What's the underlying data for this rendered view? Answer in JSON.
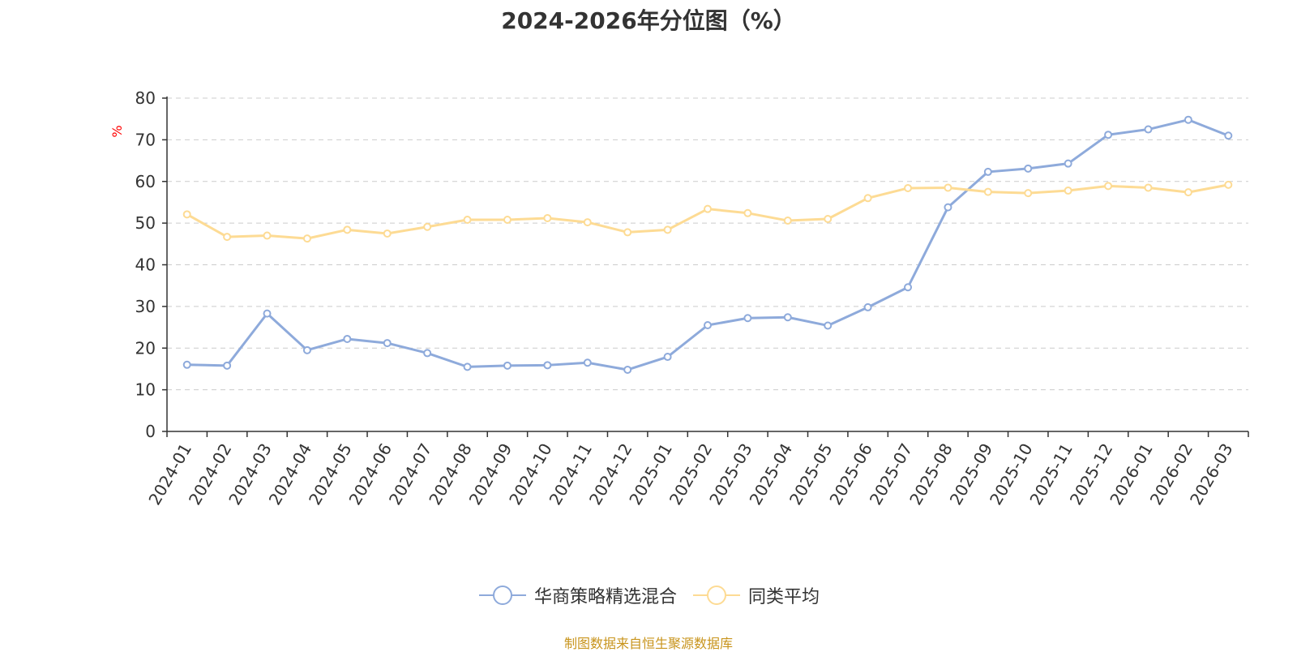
{
  "chart_data": {
    "type": "line",
    "title": "2024-2026年分位图（%）",
    "ylabel": "%",
    "ylim": [
      0,
      80
    ],
    "yticks": [
      0,
      10,
      20,
      30,
      40,
      50,
      60,
      70,
      80
    ],
    "grid": true,
    "legend_position": "bottom",
    "categories": [
      "2024-01",
      "2024-02",
      "2024-03",
      "2024-04",
      "2024-05",
      "2024-06",
      "2024-07",
      "2024-08",
      "2024-09",
      "2024-10",
      "2024-11",
      "2024-12",
      "2025-01",
      "2025-02",
      "2025-03",
      "2025-04",
      "2025-05",
      "2025-06",
      "2025-07",
      "2025-08",
      "2025-09",
      "2025-10",
      "2025-11",
      "2025-12",
      "2026-01",
      "2026-02",
      "2026-03"
    ],
    "series": [
      {
        "name": "华商策略精选混合",
        "color": "#8eaadb",
        "values": [
          16.0,
          15.8,
          28.3,
          19.5,
          22.2,
          21.2,
          18.8,
          15.5,
          15.8,
          15.9,
          16.5,
          14.8,
          17.9,
          25.5,
          27.2,
          27.4,
          25.4,
          29.8,
          34.6,
          53.8,
          62.3,
          63.1,
          64.3,
          71.2,
          72.5,
          74.8,
          71.0
        ]
      },
      {
        "name": "同类平均",
        "color": "#fddb94",
        "values": [
          52.1,
          46.7,
          47.0,
          46.3,
          48.4,
          47.5,
          49.1,
          50.8,
          50.8,
          51.2,
          50.2,
          47.8,
          48.4,
          53.4,
          52.4,
          50.6,
          51.0,
          56.0,
          58.4,
          58.5,
          57.5,
          57.2,
          57.8,
          58.9,
          58.5,
          57.4,
          59.2
        ]
      }
    ]
  },
  "source_note": "制图数据来自恒生聚源数据库",
  "colors": {
    "axis": "#333333",
    "grid": "#cccccc",
    "ylabel": "#ff0000",
    "source": "#c8941c"
  }
}
